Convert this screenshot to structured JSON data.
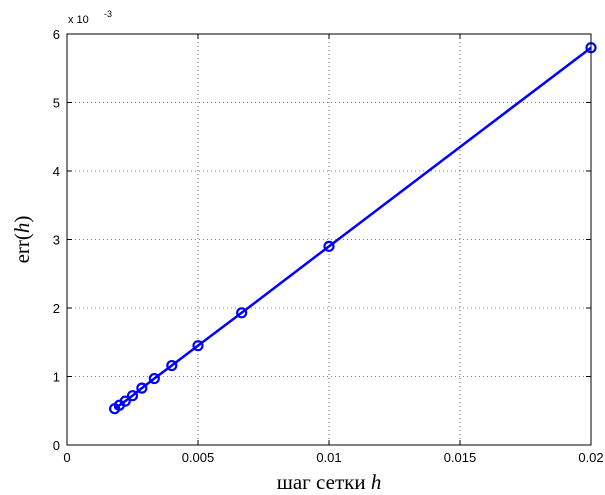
{
  "chart_data": {
    "type": "line",
    "xlabel_text": "шаг сетки ",
    "xlabel_var": "h",
    "ylabel_prefix": "err(",
    "ylabel_var": "h",
    "ylabel_suffix": ")",
    "xlim": [
      0,
      0.02
    ],
    "ylim": [
      0,
      0.006
    ],
    "x_ticks": [
      0,
      0.005,
      0.01,
      0.015,
      0.02
    ],
    "x_tick_labels": [
      "0",
      "0.005",
      "0.01",
      "0.015",
      "0.02"
    ],
    "y_ticks": [
      0,
      0.001,
      0.002,
      0.003,
      0.004,
      0.005,
      0.006
    ],
    "y_tick_labels": [
      "0",
      "1",
      "2",
      "3",
      "4",
      "5",
      "6"
    ],
    "y_exponent_base": "x 10",
    "y_exponent_power": "-3",
    "grid": true,
    "series": [
      {
        "color": "#0000ff",
        "marker": "circle",
        "x": [
          0.02,
          0.01,
          0.006667,
          0.005,
          0.004,
          0.003333,
          0.002857,
          0.0025,
          0.002222,
          0.002,
          0.001818
        ],
        "y": [
          0.0058,
          0.0029,
          0.00193,
          0.00145,
          0.00116,
          0.00097,
          0.00083,
          0.00072,
          0.00064,
          0.00058,
          0.00053
        ]
      }
    ]
  }
}
